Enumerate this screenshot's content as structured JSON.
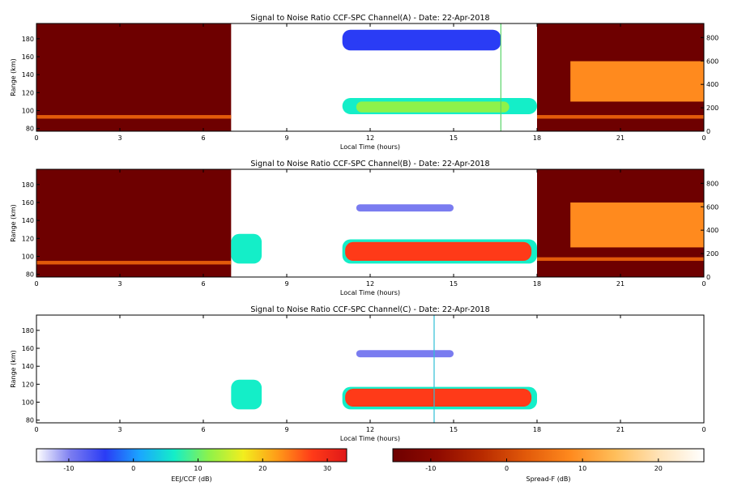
{
  "chart_data": [
    {
      "type": "heatmap",
      "title": "Signal to Noise Ratio CCF-SPC Channel(A) - Date: 22-Apr-2018",
      "xlabel": "Local Time (hours)",
      "ylabel": "Range (km)",
      "xlim": [
        0,
        24
      ],
      "ylim": [
        77,
        197
      ],
      "x_ticks": [
        "0",
        "3",
        "6",
        "9",
        "12",
        "15",
        "18",
        "21",
        "0"
      ],
      "y_ticks": [
        "80",
        "100",
        "120",
        "140",
        "160",
        "180"
      ],
      "y2_ticks": [
        "0",
        "200",
        "400",
        "600",
        "800"
      ],
      "regions": [
        {
          "layer": "spreadf",
          "x": [
            0,
            7
          ],
          "y": [
            77,
            197
          ],
          "value": -13
        },
        {
          "layer": "spreadf",
          "x": [
            0,
            7
          ],
          "y": [
            91,
            95
          ],
          "value": 5
        },
        {
          "layer": "eej",
          "x": [
            11,
            18
          ],
          "y": [
            96,
            114
          ],
          "value": 5
        },
        {
          "layer": "eej",
          "x": [
            11.5,
            17
          ],
          "y": [
            98,
            110
          ],
          "value": 12
        },
        {
          "layer": "eej",
          "x": [
            11,
            16.7
          ],
          "y": [
            167,
            190
          ],
          "value": -7
        },
        {
          "layer": "eej",
          "x": [
            11.5,
            16
          ],
          "y": [
            174,
            187
          ],
          "value": -2
        },
        {
          "layer": "spreadf",
          "x": [
            18,
            24
          ],
          "y": [
            77,
            197
          ],
          "value": -13
        },
        {
          "layer": "spreadf",
          "x": [
            19.2,
            24
          ],
          "y": [
            110,
            155
          ],
          "value": 10
        },
        {
          "layer": "spreadf",
          "x": [
            18,
            24
          ],
          "y": [
            91,
            95
          ],
          "value": 5
        }
      ],
      "vertical_line": {
        "x": 16.7,
        "color": "#5ad46a"
      }
    },
    {
      "type": "heatmap",
      "title": "Signal to Noise Ratio CCF-SPC Channel(B) - Date: 22-Apr-2018",
      "xlabel": "Local Time (hours)",
      "ylabel": "Range (km)",
      "xlim": [
        0,
        24
      ],
      "ylim": [
        77,
        197
      ],
      "x_ticks": [
        "0",
        "3",
        "6",
        "9",
        "12",
        "15",
        "18",
        "21",
        "0"
      ],
      "y_ticks": [
        "80",
        "100",
        "120",
        "140",
        "160",
        "180"
      ],
      "y2_ticks": [
        "0",
        "200",
        "400",
        "600",
        "800"
      ],
      "regions": [
        {
          "layer": "spreadf",
          "x": [
            0,
            7
          ],
          "y": [
            77,
            197
          ],
          "value": -13
        },
        {
          "layer": "spreadf",
          "x": [
            0,
            7
          ],
          "y": [
            91,
            95
          ],
          "value": 5
        },
        {
          "layer": "eej",
          "x": [
            7,
            8.1
          ],
          "y": [
            92,
            125
          ],
          "value": 5
        },
        {
          "layer": "eej",
          "x": [
            11,
            18
          ],
          "y": [
            92,
            119
          ],
          "value": 8
        },
        {
          "layer": "eej",
          "x": [
            11.1,
            17.8
          ],
          "y": [
            95,
            116
          ],
          "value": 28
        },
        {
          "layer": "eej",
          "x": [
            11.5,
            15
          ],
          "y": [
            150,
            158
          ],
          "value": -10
        },
        {
          "layer": "spreadf",
          "x": [
            18,
            24
          ],
          "y": [
            77,
            197
          ],
          "value": -13
        },
        {
          "layer": "spreadf",
          "x": [
            19.2,
            24
          ],
          "y": [
            110,
            160
          ],
          "value": 10
        },
        {
          "layer": "spreadf",
          "x": [
            18,
            24
          ],
          "y": [
            95,
            99
          ],
          "value": 5
        }
      ]
    },
    {
      "type": "heatmap",
      "title": "Signal to Noise Ratio CCF-SPC Channel(C) - Date: 22-Apr-2018",
      "xlabel": "Local Time (hours)",
      "ylabel": "Range (km)",
      "xlim": [
        0,
        24
      ],
      "ylim": [
        77,
        197
      ],
      "x_ticks": [
        "0",
        "3",
        "6",
        "9",
        "12",
        "15",
        "18",
        "21",
        "0"
      ],
      "y_ticks": [
        "80",
        "100",
        "120",
        "140",
        "160",
        "180"
      ],
      "regions": [
        {
          "layer": "eej",
          "x": [
            7,
            8.1
          ],
          "y": [
            92,
            125
          ],
          "value": 5
        },
        {
          "layer": "eej",
          "x": [
            11,
            18
          ],
          "y": [
            92,
            117
          ],
          "value": 8
        },
        {
          "layer": "eej",
          "x": [
            11.1,
            17.8
          ],
          "y": [
            95,
            115
          ],
          "value": 28
        },
        {
          "layer": "eej",
          "x": [
            11.5,
            15
          ],
          "y": [
            150,
            158
          ],
          "value": -10
        }
      ],
      "vertical_line": {
        "x": 14.3,
        "color": "#2fbfd6"
      }
    }
  ],
  "colorbars": [
    {
      "label": "EEJ/CCF (dB)",
      "ticks": [
        "-10",
        "0",
        "10",
        "20",
        "30"
      ],
      "tick_values": [
        -10,
        0,
        10,
        20,
        30
      ],
      "range": [
        -15,
        33
      ],
      "colors": [
        "#ffffff",
        "#7a7cf0",
        "#2a3cf5",
        "#1aa6ff",
        "#14eec8",
        "#8ef24a",
        "#f2ee1e",
        "#ff9a18",
        "#ff3a18",
        "#e01818"
      ]
    },
    {
      "label": "Spread-F (dB)",
      "ticks": [
        "-10",
        "0",
        "10",
        "20"
      ],
      "tick_values": [
        -10,
        0,
        10,
        20
      ],
      "range": [
        -15,
        26
      ],
      "colors": [
        "#6e0000",
        "#8e0a00",
        "#b82a00",
        "#e25a0a",
        "#ff8a1e",
        "#ffbe5a",
        "#ffe3b8",
        "#ffffff"
      ]
    }
  ]
}
